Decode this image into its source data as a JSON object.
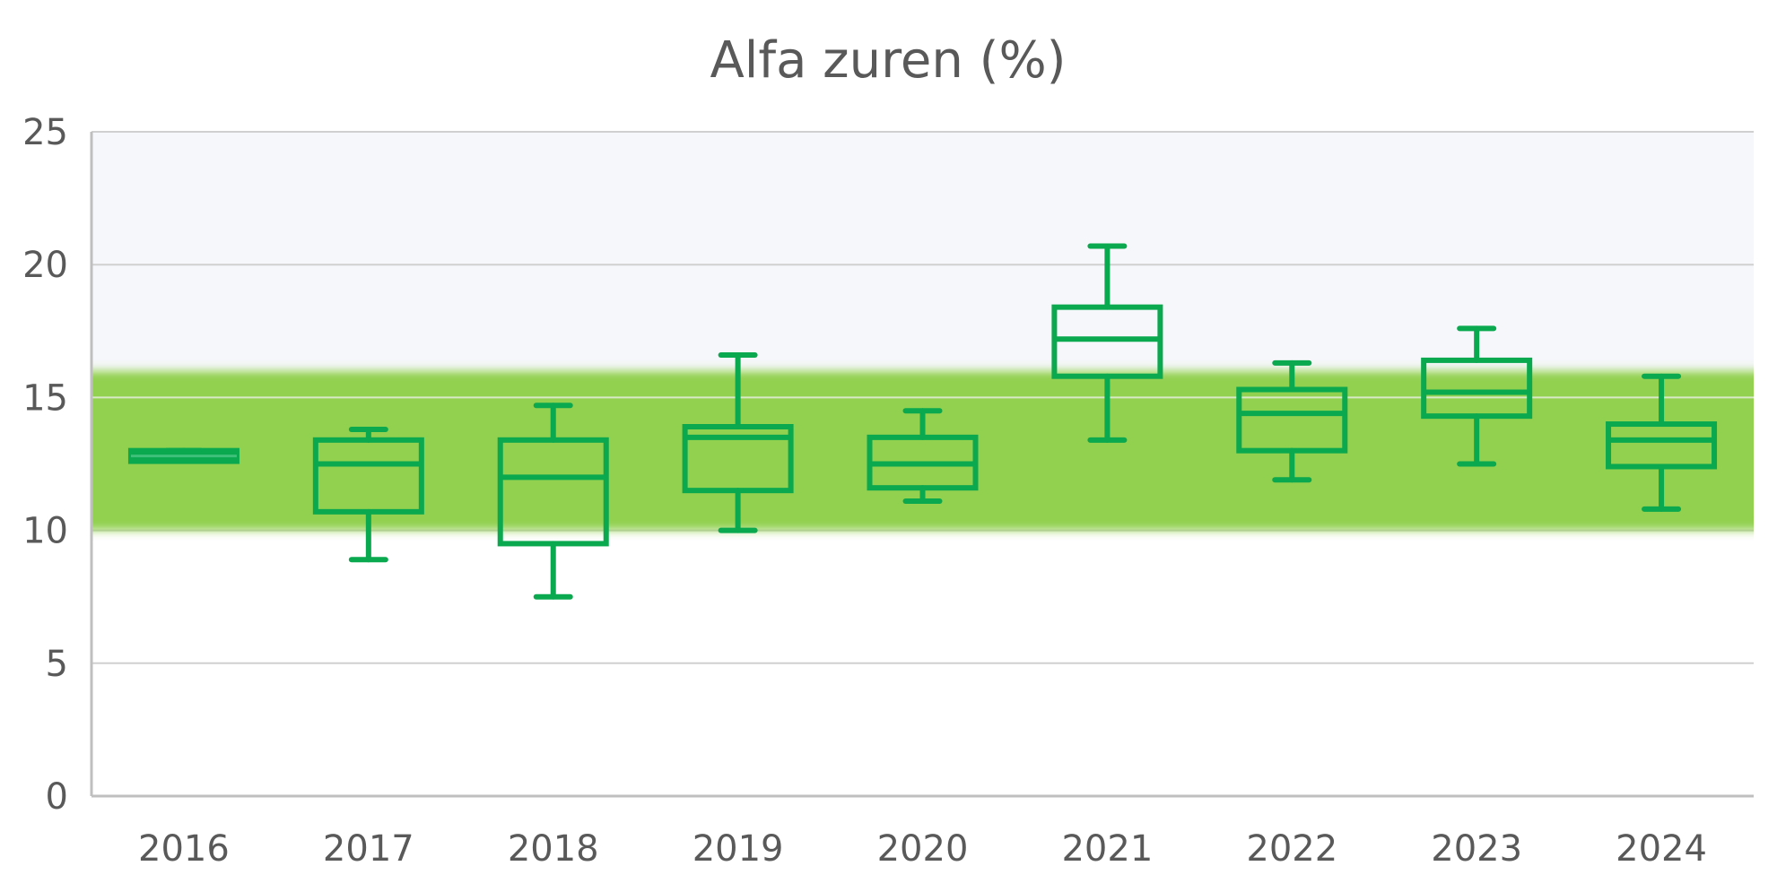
{
  "chart_data": {
    "type": "box",
    "title": "Alfa zuren (%)",
    "xlabel": "",
    "ylabel": "",
    "ylim": [
      0,
      25
    ],
    "yticks": [
      "0",
      "5",
      "10",
      "15",
      "20",
      "25"
    ],
    "categories": [
      "2016",
      "2017",
      "2018",
      "2019",
      "2020",
      "2021",
      "2022",
      "2023",
      "2024"
    ],
    "series": [
      {
        "boxes": [
          {
            "min": 12.6,
            "q1": 12.6,
            "median": 12.8,
            "q3": 13.0,
            "max": 13.0
          },
          {
            "min": 8.9,
            "q1": 10.7,
            "median": 12.5,
            "q3": 13.4,
            "max": 13.8
          },
          {
            "min": 7.5,
            "q1": 9.5,
            "median": 12.0,
            "q3": 13.4,
            "max": 14.7
          },
          {
            "min": 10.0,
            "q1": 11.5,
            "median": 13.5,
            "q3": 13.9,
            "max": 16.6
          },
          {
            "min": 11.1,
            "q1": 11.6,
            "median": 12.5,
            "q3": 13.5,
            "max": 14.5
          },
          {
            "min": 13.4,
            "q1": 15.8,
            "median": 17.2,
            "q3": 18.4,
            "max": 20.7
          },
          {
            "min": 11.9,
            "q1": 13.0,
            "median": 14.4,
            "q3": 15.3,
            "max": 16.3
          },
          {
            "min": 12.5,
            "q1": 14.3,
            "median": 15.2,
            "q3": 16.4,
            "max": 17.6
          },
          {
            "min": 10.8,
            "q1": 12.4,
            "median": 13.4,
            "q3": 14.0,
            "max": 15.8
          }
        ]
      }
    ],
    "target_band": {
      "from": 10.0,
      "to": 16.0
    },
    "grid": true,
    "legend": "none",
    "colors": {
      "box": "#0aa84f",
      "band": "#92d050",
      "upper_area": "#f6f7fa",
      "grid": "#d0d0d0",
      "axis": "#bfbfbf",
      "text": "#595959"
    }
  }
}
